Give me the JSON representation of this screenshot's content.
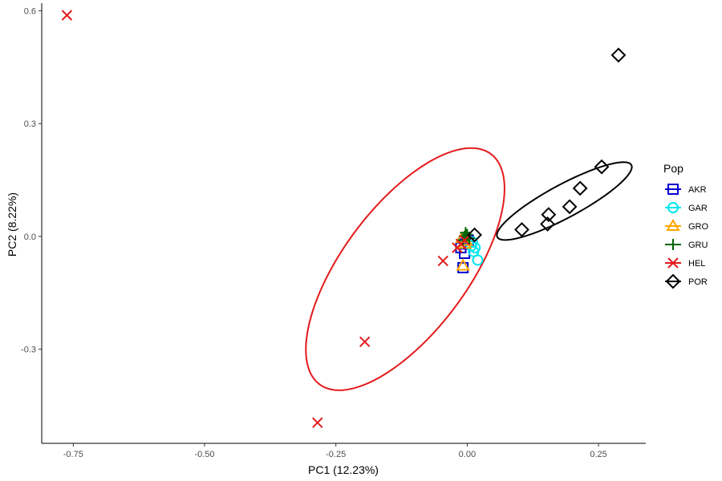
{
  "chart_data": {
    "type": "scatter",
    "xlabel": "PC1 (12.23%)",
    "ylabel": "PC2 (8.22%)",
    "xlim": [
      -0.81,
      0.34
    ],
    "ylim": [
      -0.55,
      0.62
    ],
    "x_ticks": [
      -0.75,
      -0.5,
      -0.25,
      0.0,
      0.25
    ],
    "x_tick_labels": [
      "-0.75",
      "-0.50",
      "-0.25",
      "0.00",
      "0.25"
    ],
    "y_ticks": [
      -0.3,
      0.0,
      0.3,
      0.6
    ],
    "y_tick_labels": [
      "-0.3",
      "0.0",
      "0.3",
      "0.6"
    ],
    "grid": false,
    "legend": {
      "title": "Pop",
      "position": "right",
      "entries": [
        "AKR",
        "GAR",
        "GRO",
        "GRU",
        "HEL",
        "POR"
      ]
    },
    "series": [
      {
        "name": "AKR",
        "color": "#0000CD",
        "marker": "square",
        "x": [
          -0.008,
          -0.005,
          -0.012,
          0.002,
          -0.004
        ],
        "y": [
          -0.083,
          -0.045,
          -0.03,
          -0.01,
          -0.02
        ]
      },
      {
        "name": "GAR",
        "color": "#00E5EE",
        "marker": "circle",
        "x": [
          0.02,
          0.012,
          0.008,
          0.015,
          0.01
        ],
        "y": [
          -0.063,
          -0.04,
          -0.025,
          -0.03,
          -0.015
        ]
      },
      {
        "name": "GRO",
        "color": "#FFA500",
        "marker": "triangle",
        "x": [
          -0.008,
          -0.004,
          -0.01,
          -0.002
        ],
        "y": [
          -0.078,
          -0.02,
          -0.005,
          -0.012
        ]
      },
      {
        "name": "GRU",
        "color": "#006400",
        "marker": "plus",
        "x": [
          -0.005,
          0.0,
          -0.008,
          0.004,
          -0.003
        ],
        "y": [
          0.0,
          0.005,
          -0.01,
          -0.005,
          0.01
        ]
      },
      {
        "name": "HEL",
        "color": "#E41A1C",
        "marker": "x",
        "x": [
          -0.762,
          -0.195,
          -0.285,
          -0.046,
          -0.019,
          -0.012,
          -0.005
        ],
        "y": [
          0.588,
          -0.28,
          -0.495,
          -0.065,
          -0.03,
          -0.02,
          -0.01
        ]
      },
      {
        "name": "POR",
        "color": "#000000",
        "marker": "diamond",
        "x": [
          0.288,
          0.256,
          0.215,
          0.195,
          0.155,
          0.153,
          0.104,
          0.014
        ],
        "y": [
          0.482,
          0.185,
          0.128,
          0.079,
          0.058,
          0.033,
          0.018,
          0.004
        ]
      }
    ],
    "ellipses": [
      {
        "name": "HEL",
        "color": "#E41A1C",
        "cx": -0.118,
        "cy": -0.087,
        "rx": 0.35,
        "ry": 0.13,
        "angle_deg": 65
      },
      {
        "name": "POR",
        "color": "#000000",
        "cx": 0.185,
        "cy": 0.094,
        "rx": 0.16,
        "ry": 0.04,
        "angle_deg": 38
      }
    ]
  }
}
